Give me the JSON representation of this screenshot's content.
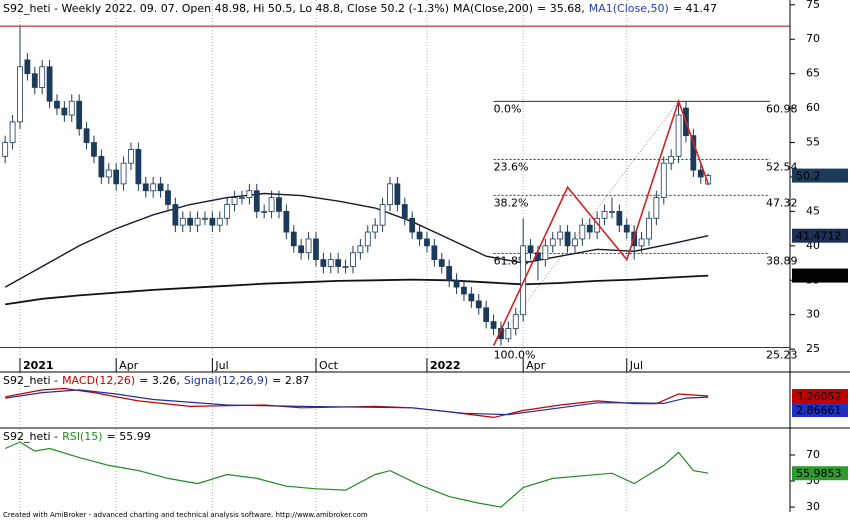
{
  "chart_data": [
    {
      "type": "candlestick",
      "title": "S92_heti - Weekly 2022. 09. 07. Open 48.98, Hi 50.5, Lo 48.8, Close 50.2 (-1.3%)",
      "up_color": "#ffffff",
      "down_color": "#1c3b5a",
      "open": [
        53,
        55,
        58,
        67,
        65,
        63,
        66,
        61,
        60,
        59,
        61,
        57,
        55,
        53,
        50,
        51,
        49,
        52,
        54,
        49,
        48,
        49,
        48,
        46,
        43,
        44,
        43,
        44,
        44,
        43,
        44,
        46,
        47,
        47,
        48,
        45,
        45,
        47,
        45,
        42,
        40,
        39,
        41,
        38,
        37,
        38,
        37,
        37,
        39,
        40,
        42,
        43,
        46,
        49,
        46,
        44,
        42,
        41,
        40,
        38,
        37,
        35,
        34,
        33,
        32,
        31,
        29,
        28,
        26.5,
        28,
        30,
        40,
        39,
        38,
        40,
        41,
        42,
        40,
        41,
        43,
        42,
        44,
        45,
        45,
        43,
        42,
        40,
        41,
        44,
        47,
        52,
        53,
        60,
        56,
        51,
        48.98
      ],
      "high": [
        56,
        59,
        72,
        68,
        66,
        67,
        67,
        62,
        61,
        62,
        62,
        58,
        56,
        54,
        52,
        52,
        53,
        55,
        55,
        50,
        50,
        50,
        49,
        47,
        45,
        45,
        45,
        45,
        45,
        45,
        47,
        48,
        48,
        49,
        49,
        46,
        48,
        48,
        46,
        43,
        41,
        42,
        42,
        39,
        39,
        39,
        38,
        40,
        41,
        43,
        44,
        47,
        50,
        50,
        47,
        45,
        43,
        42,
        41,
        39,
        38,
        36,
        35,
        34,
        33,
        32,
        30,
        29,
        29,
        31,
        44,
        41,
        40,
        41,
        42,
        43,
        43,
        42,
        44,
        44,
        45,
        46,
        47,
        46,
        44,
        43,
        42,
        45,
        48,
        53,
        54,
        61,
        61,
        57,
        52,
        50.5
      ],
      "low": [
        52,
        54,
        57,
        64,
        62,
        62,
        60,
        59,
        58,
        58,
        56,
        54,
        52,
        49,
        49,
        48,
        48,
        51,
        48,
        47,
        47,
        47,
        45,
        42,
        42,
        42,
        42,
        43,
        42,
        42,
        43,
        45,
        46,
        46,
        44,
        44,
        44,
        44,
        41,
        39,
        38,
        38,
        37,
        36,
        36,
        36,
        36,
        36,
        38,
        39,
        41,
        42,
        45,
        45,
        43,
        41,
        40,
        39,
        37,
        36,
        34,
        33,
        32,
        31,
        30,
        28,
        27,
        25.5,
        26,
        27,
        29,
        38,
        35,
        37,
        39,
        40,
        39,
        39,
        40,
        41,
        41,
        43,
        44,
        42,
        41,
        38,
        39,
        40,
        43,
        46,
        51,
        52,
        55,
        50,
        49,
        48.8
      ],
      "close": [
        55,
        58,
        66,
        65,
        63,
        66,
        61,
        60,
        59,
        61,
        57,
        55,
        53,
        50,
        51,
        49,
        52,
        54,
        49,
        48,
        49,
        48,
        46,
        43,
        44,
        43,
        44,
        44,
        43,
        44,
        46,
        47,
        47,
        48,
        45,
        45,
        47,
        45,
        42,
        40,
        39,
        41,
        38,
        37,
        38,
        37,
        37,
        39,
        40,
        42,
        43,
        46,
        49,
        46,
        44,
        42,
        41,
        40,
        38,
        37,
        35,
        34,
        33,
        32,
        31,
        29,
        28,
        26.5,
        28,
        30,
        40,
        39,
        38,
        40,
        41,
        42,
        40,
        41,
        43,
        42,
        44,
        45,
        45,
        43,
        42,
        40,
        41,
        44,
        47,
        52,
        53,
        59,
        56,
        51,
        50,
        50.2
      ],
      "xlim": [
        -0.7,
        106.06
      ],
      "xticks": [
        {
          "value": 2,
          "label": "2021"
        },
        {
          "value": 15,
          "label": "Apr"
        },
        {
          "value": 28,
          "label": "Jul"
        },
        {
          "value": 42,
          "label": "Oct"
        },
        {
          "value": 57,
          "label": "2022"
        },
        {
          "value": 70,
          "label": "Apr"
        },
        {
          "value": 84,
          "label": "Jul"
        }
      ],
      "ylim": [
        24,
        75.7
      ],
      "yticks": [
        25,
        30,
        35,
        40,
        45,
        50,
        55,
        60,
        65,
        70,
        75
      ],
      "series": [
        {
          "name": "MA(Close,200)",
          "value_label": "= 35.68,",
          "color": "#111111",
          "label_color": "#000000",
          "x": [
            0,
            5,
            10,
            15,
            20,
            25,
            30,
            35,
            40,
            45,
            50,
            55,
            60,
            65,
            70,
            75,
            80,
            85,
            90,
            95
          ],
          "values": [
            31.5,
            32.3,
            32.8,
            33.2,
            33.6,
            33.9,
            34.2,
            34.5,
            34.7,
            34.9,
            35.0,
            35.1,
            35.0,
            34.7,
            34.4,
            34.6,
            34.9,
            35.1,
            35.4,
            35.68
          ]
        },
        {
          "name": "MA1(Close,50)",
          "value_label": "= 41.47",
          "color": "#1a1a2e",
          "label_color": "#1f3fbf",
          "x": [
            0,
            5,
            10,
            15,
            20,
            25,
            30,
            35,
            40,
            45,
            50,
            55,
            60,
            65,
            70,
            75,
            80,
            85,
            90,
            95
          ],
          "values": [
            34,
            37,
            40,
            42.5,
            44.5,
            46,
            47,
            47.6,
            47.3,
            46.5,
            45.5,
            43.5,
            41,
            38.5,
            37.5,
            38.5,
            39.5,
            39.2,
            40.3,
            41.47
          ]
        }
      ],
      "hlines": [
        {
          "value": 71.9,
          "color": "#c00000"
        },
        {
          "value": 25.23,
          "color": "#c00000"
        }
      ],
      "fib_levels": [
        {
          "label": "0.0%",
          "value": 60.98
        },
        {
          "label": "23.6%",
          "value": 52.54
        },
        {
          "label": "38.2%",
          "value": 47.32
        },
        {
          "label": "61.8%",
          "value": 38.89
        },
        {
          "label": "100.0%",
          "value": 25.23
        }
      ],
      "zigzag": {
        "color": "#d62020",
        "x": [
          66,
          76,
          84,
          91,
          95
        ],
        "values": [
          25.5,
          48.5,
          38,
          61,
          49
        ]
      },
      "tags": [
        {
          "value": 50.2,
          "label": "50.2",
          "color": "#1c3b5a"
        },
        {
          "value": 41.4712,
          "label": "41.4712",
          "color": "#1c2f55"
        },
        {
          "value": 35.6825,
          "label": "35.6825",
          "color": "#000000"
        }
      ]
    },
    {
      "type": "line",
      "title": "S92_heti -",
      "ylim": [
        -8,
        8
      ],
      "series": [
        {
          "name": "MACD(12,26)",
          "value_label": "= 3.26,",
          "color": "#c00000",
          "label_color": "#c00000",
          "x": [
            0,
            5,
            8,
            12,
            18,
            25,
            35,
            40,
            50,
            55,
            60,
            66,
            70,
            75,
            80,
            85,
            88,
            91,
            95
          ],
          "values": [
            3,
            5.5,
            6,
            4.5,
            1.5,
            -0.5,
            0,
            -1,
            -0.5,
            -1,
            -2.5,
            -4.5,
            -2,
            0,
            1.5,
            0.5,
            0.5,
            4,
            3.26
          ]
        },
        {
          "name": "Signal(12,26,9)",
          "value_label": "= 2.87",
          "color": "#1f2fa0",
          "label_color": "#1f2fa0",
          "x": [
            0,
            5,
            10,
            15,
            20,
            30,
            40,
            55,
            62,
            68,
            75,
            80,
            85,
            89,
            92,
            95
          ],
          "values": [
            2.5,
            4.5,
            5.5,
            4,
            2,
            0,
            -0.5,
            -1,
            -3,
            -3.5,
            -1,
            0.8,
            0.8,
            0.6,
            2.5,
            2.87
          ]
        }
      ],
      "tags": [
        {
          "value": 3.26052,
          "label": "3.26052",
          "color": "#c00000"
        },
        {
          "value": 2.86661,
          "label": "2.86661",
          "color": "#1f2fbf"
        }
      ]
    },
    {
      "type": "line",
      "title": "S92_heti -",
      "ylim": [
        26.2,
        81.5
      ],
      "yticks": [
        30,
        50,
        70
      ],
      "series": [
        {
          "name": "RSI(15)",
          "value_label": "= 55.99",
          "color": "#228b22",
          "label_color": "#228b22",
          "x": [
            0,
            2,
            4,
            6,
            10,
            14,
            18,
            22,
            26,
            30,
            34,
            38,
            42,
            46,
            50,
            52,
            56,
            60,
            64,
            67,
            70,
            74,
            78,
            82,
            85,
            87,
            89,
            91,
            93,
            95
          ],
          "values": [
            75,
            80,
            73,
            75,
            68,
            62,
            58,
            52,
            48,
            55,
            52,
            46,
            44,
            43,
            55,
            58,
            47,
            38,
            33,
            30,
            45,
            52,
            54,
            56,
            48,
            55,
            62,
            72,
            58,
            55.99
          ]
        }
      ],
      "tags": [
        {
          "value": 55.9853,
          "label": "55.9853",
          "color": "#2e9b2e"
        }
      ]
    }
  ],
  "footer": "Created with AmiBroker - advanced charting and technical analysis software. http://www.amibroker.com"
}
